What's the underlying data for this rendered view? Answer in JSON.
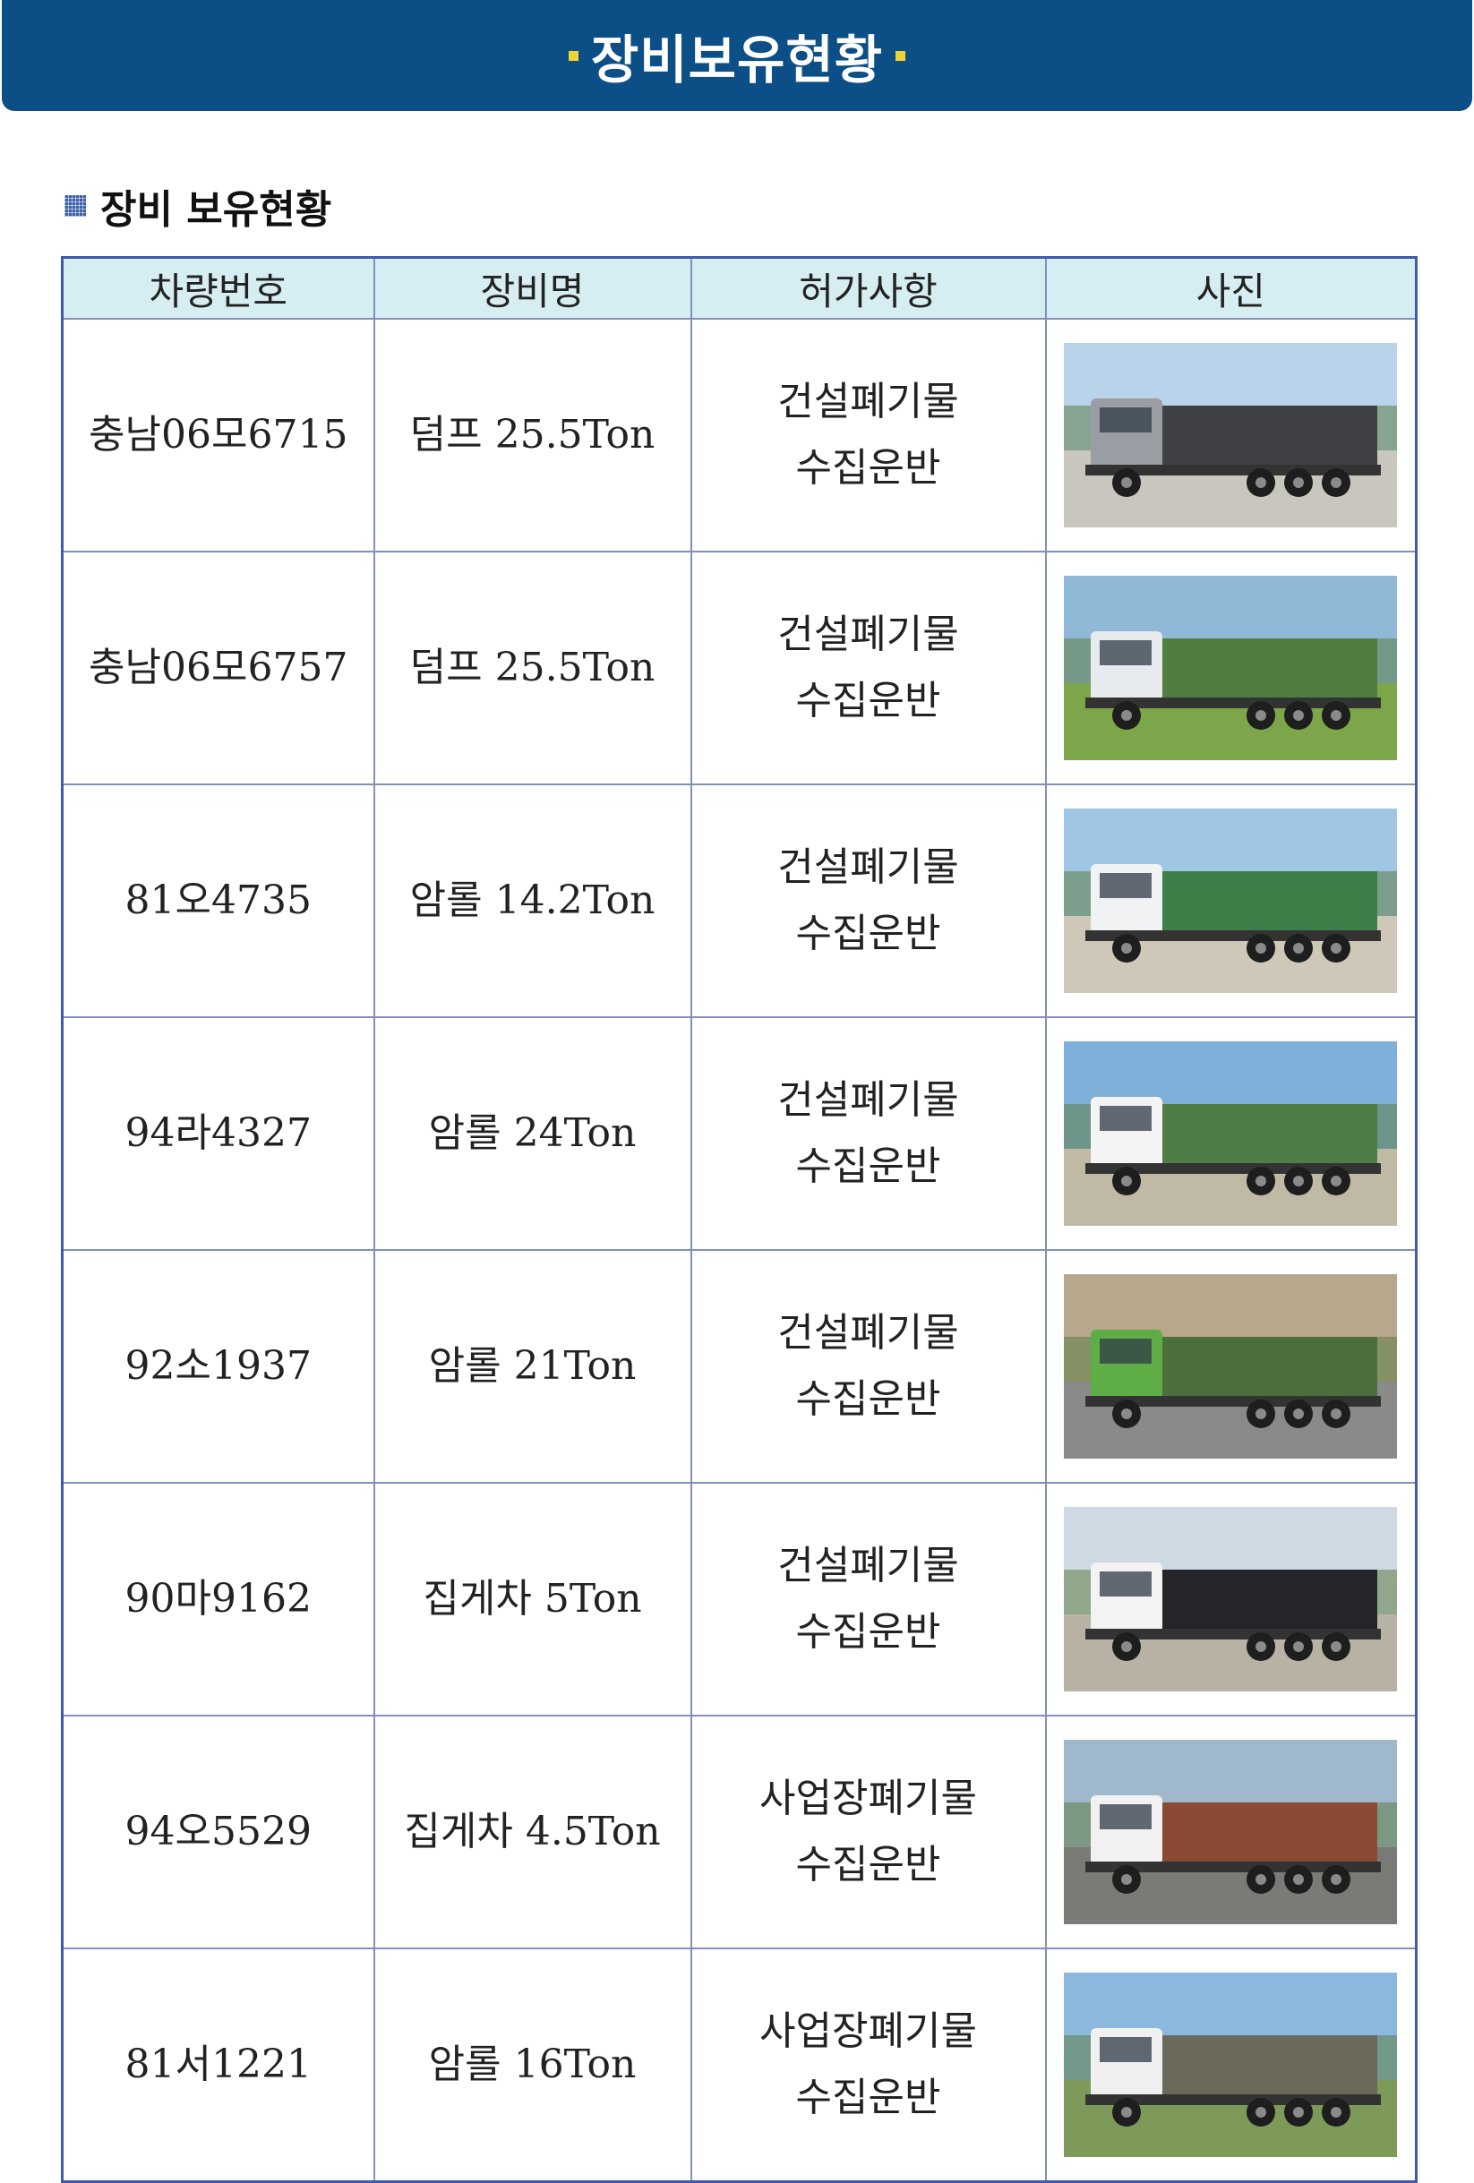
{
  "banner": {
    "title": "장비보유현황"
  },
  "section": {
    "title": "장비 보유현황"
  },
  "table": {
    "headers": [
      "차량번호",
      "장비명",
      "허가사항",
      "사진"
    ],
    "rows": [
      {
        "plate": "충남06모6715",
        "equipment": "덤프 25.5Ton",
        "permit1": "건설폐기물",
        "permit2": "수집운반",
        "photo": "dump-truck-photo"
      },
      {
        "plate": "충남06모6757",
        "equipment": "덤프 25.5Ton",
        "permit1": "건설폐기물",
        "permit2": "수집운반",
        "photo": "dump-truck-photo"
      },
      {
        "plate": "81오4735",
        "equipment": "암롤 14.2Ton",
        "permit1": "건설폐기물",
        "permit2": "수집운반",
        "photo": "arm-roll-truck-photo"
      },
      {
        "plate": "94라4327",
        "equipment": "암롤 24Ton",
        "permit1": "건설폐기물",
        "permit2": "수집운반",
        "photo": "arm-roll-truck-photo"
      },
      {
        "plate": "92소1937",
        "equipment": "암롤 21Ton",
        "permit1": "건설폐기물",
        "permit2": "수집운반",
        "photo": "arm-roll-truck-photo"
      },
      {
        "plate": "90마9162",
        "equipment": "집게차 5Ton",
        "permit1": "건설폐기물",
        "permit2": "수집운반",
        "photo": "grab-truck-photo"
      },
      {
        "plate": "94오5529",
        "equipment": "집게차 4.5Ton",
        "permit1": "사업장폐기물",
        "permit2": "수집운반",
        "photo": "grab-truck-photo"
      },
      {
        "plate": "81서1221",
        "equipment": "암롤 16Ton",
        "permit1": "사업장폐기물",
        "permit2": "수집운반",
        "photo": "arm-roll-truck-photo"
      }
    ]
  },
  "colors": {
    "banner": "#0c4f86",
    "header_bg": "#d6eef2",
    "table_border": "#3f5aa9",
    "accent": "#f1d430"
  }
}
